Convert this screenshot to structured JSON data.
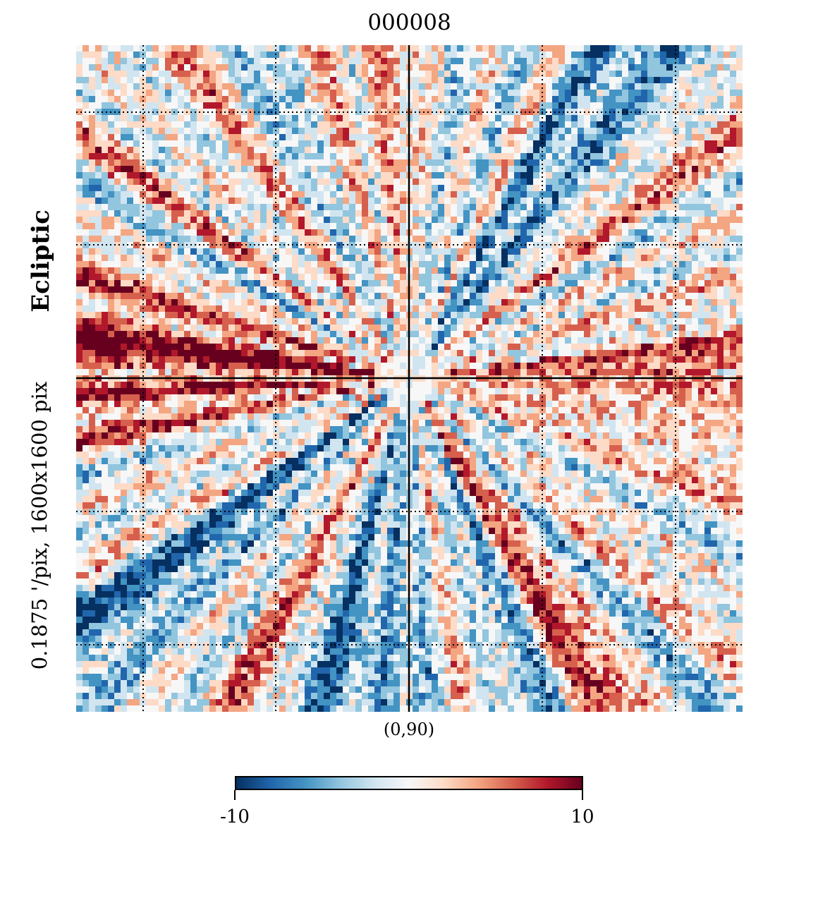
{
  "title": "000008",
  "side_label_bold": "Ecliptic",
  "side_label": "0.1875 '/pix,   1600x1600 pix",
  "center_label": "(0,90)",
  "colorbar": {
    "min_label": "-10",
    "max_label": "10",
    "colormap": "RdBu_r",
    "colors": [
      "#053061",
      "#2166ac",
      "#4393c3",
      "#92c5de",
      "#d1e5f0",
      "#f7f7f7",
      "#fddbc7",
      "#f4a582",
      "#d6604d",
      "#b2182b",
      "#67001f"
    ]
  },
  "graticule": "dotted",
  "crosshair": "solid"
}
